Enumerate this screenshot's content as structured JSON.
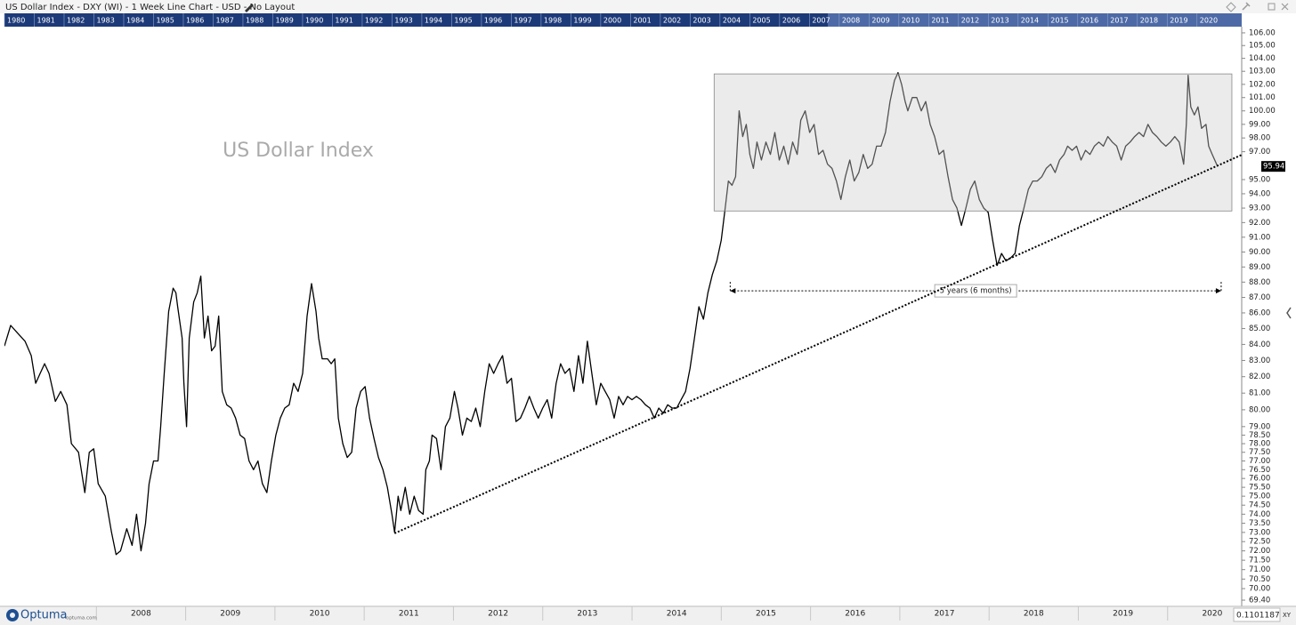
{
  "header": {
    "title": "US Dollar Index - DXY (WI) - 1 Week Line Chart - USD - No Layout"
  },
  "overview": {
    "years": [
      1980,
      1981,
      1982,
      1983,
      1984,
      1985,
      1986,
      1987,
      1988,
      1989,
      1990,
      1991,
      1992,
      1993,
      1994,
      1995,
      1996,
      1997,
      1998,
      1999,
      2000,
      2001,
      2002,
      2003,
      2004,
      2005,
      2006,
      2007,
      2008,
      2009,
      2010,
      2011,
      2012,
      2013,
      2014,
      2015,
      2016,
      2017,
      2018,
      2019,
      2020
    ]
  },
  "footer": {
    "logo": "Optuma",
    "site": "optuma.com",
    "scale_value": "0.1101187",
    "mode": "XY"
  },
  "chart_data": {
    "type": "line",
    "title": "US Dollar Index",
    "color": "#000000",
    "ylog": true,
    "grid": false,
    "xlim": [
      2006.97,
      2020.83
    ],
    "ylim": [
      69.08,
      106.49
    ],
    "xticks": [
      2008,
      2009,
      2010,
      2011,
      2012,
      2013,
      2014,
      2015,
      2016,
      2017,
      2018,
      2019,
      2020
    ],
    "yticks": [
      {
        "value": 106,
        "label": "106.00"
      },
      {
        "value": 105,
        "label": "105.00"
      },
      {
        "value": 104,
        "label": "104.00"
      },
      {
        "value": 103,
        "label": "103.00"
      },
      {
        "value": 102,
        "label": "102.00"
      },
      {
        "value": 101,
        "label": "101.00"
      },
      {
        "value": 100,
        "label": "100.00"
      },
      {
        "value": 99,
        "label": "99.00"
      },
      {
        "value": 98,
        "label": "98.00"
      },
      {
        "value": 97,
        "label": "97.00"
      },
      {
        "value": 95,
        "label": "95.00"
      },
      {
        "value": 94,
        "label": "94.00"
      },
      {
        "value": 93,
        "label": "93.00"
      },
      {
        "value": 92,
        "label": "92.00"
      },
      {
        "value": 91,
        "label": "91.00"
      },
      {
        "value": 90,
        "label": "90.00"
      },
      {
        "value": 89,
        "label": "89.00"
      },
      {
        "value": 88,
        "label": "88.00"
      },
      {
        "value": 87,
        "label": "87.00"
      },
      {
        "value": 86,
        "label": "86.00"
      },
      {
        "value": 85,
        "label": "85.00"
      },
      {
        "value": 84,
        "label": "84.00"
      },
      {
        "value": 83,
        "label": "83.00"
      },
      {
        "value": 82,
        "label": "82.00"
      },
      {
        "value": 81,
        "label": "81.00"
      },
      {
        "value": 80,
        "label": "80.00"
      },
      {
        "value": 79,
        "label": "79.00"
      },
      {
        "value": 78.5,
        "label": "78.50"
      },
      {
        "value": 78,
        "label": "78.00"
      },
      {
        "value": 77.5,
        "label": "77.50"
      },
      {
        "value": 77,
        "label": "77.00"
      },
      {
        "value": 76.5,
        "label": "76.50"
      },
      {
        "value": 76,
        "label": "76.00"
      },
      {
        "value": 75.5,
        "label": "75.50"
      },
      {
        "value": 75,
        "label": "75.00"
      },
      {
        "value": 74.5,
        "label": "74.50"
      },
      {
        "value": 74,
        "label": "74.00"
      },
      {
        "value": 73.5,
        "label": "73.50"
      },
      {
        "value": 73,
        "label": "73.00"
      },
      {
        "value": 72.5,
        "label": "72.50"
      },
      {
        "value": 72,
        "label": "72.00"
      },
      {
        "value": 71.5,
        "label": "71.50"
      },
      {
        "value": 71,
        "label": "71.00"
      },
      {
        "value": 70.5,
        "label": "70.50"
      },
      {
        "value": 70,
        "label": "70.00"
      },
      {
        "value": 69.4,
        "label": "69.40"
      }
    ],
    "x": [
      2006.97,
      2007.04,
      2007.12,
      2007.2,
      2007.27,
      2007.32,
      2007.37,
      2007.42,
      2007.47,
      2007.54,
      2007.6,
      2007.67,
      2007.72,
      2007.8,
      2007.87,
      2007.92,
      2007.97,
      2008.02,
      2008.1,
      2008.17,
      2008.22,
      2008.27,
      2008.34,
      2008.4,
      2008.45,
      2008.5,
      2008.55,
      2008.59,
      2008.64,
      2008.69,
      2008.72,
      2008.76,
      2008.81,
      2008.86,
      2008.89,
      2008.91,
      2008.96,
      2008.98,
      2009.01,
      2009.04,
      2009.09,
      2009.13,
      2009.17,
      2009.21,
      2009.25,
      2009.29,
      2009.33,
      2009.37,
      2009.41,
      2009.46,
      2009.51,
      2009.56,
      2009.61,
      2009.66,
      2009.71,
      2009.76,
      2009.81,
      2009.86,
      2009.91,
      2009.96,
      2010.01,
      2010.06,
      2010.11,
      2010.16,
      2010.21,
      2010.26,
      2010.31,
      2010.36,
      2010.41,
      2010.46,
      2010.49,
      2010.53,
      2010.59,
      2010.63,
      2010.67,
      2010.71,
      2010.76,
      2010.81,
      2010.86,
      2010.91,
      2010.96,
      2011.01,
      2011.06,
      2011.11,
      2011.16,
      2011.21,
      2011.26,
      2011.31,
      2011.34,
      2011.38,
      2011.41,
      2011.46,
      2011.51,
      2011.56,
      2011.61,
      2011.66,
      2011.69,
      2011.73,
      2011.76,
      2011.81,
      2011.86,
      2011.91,
      2011.96,
      2012.01,
      2012.05,
      2012.1,
      2012.15,
      2012.2,
      2012.25,
      2012.3,
      2012.35,
      2012.4,
      2012.45,
      2012.5,
      2012.55,
      2012.6,
      2012.65,
      2012.7,
      2012.75,
      2012.8,
      2012.85,
      2012.9,
      2012.95,
      2013.0,
      2013.05,
      2013.1,
      2013.15,
      2013.2,
      2013.25,
      2013.3,
      2013.35,
      2013.4,
      2013.45,
      2013.5,
      2013.55,
      2013.6,
      2013.65,
      2013.7,
      2013.75,
      2013.8,
      2013.85,
      2013.9,
      2013.95,
      2014.0,
      2014.05,
      2014.1,
      2014.15,
      2014.2,
      2014.25,
      2014.3,
      2014.35,
      2014.4,
      2014.45,
      2014.5,
      2014.55,
      2014.6,
      2014.65,
      2014.7,
      2014.75,
      2014.8,
      2014.85,
      2014.9,
      2014.95,
      2015.0,
      2015.05,
      2015.08,
      2015.12,
      2015.16,
      2015.2,
      2015.24,
      2015.28,
      2015.32,
      2015.36,
      2015.4,
      2015.45,
      2015.5,
      2015.55,
      2015.6,
      2015.65,
      2015.7,
      2015.75,
      2015.8,
      2015.85,
      2015.89,
      2015.94,
      2015.99,
      2016.04,
      2016.09,
      2016.14,
      2016.19,
      2016.24,
      2016.29,
      2016.34,
      2016.39,
      2016.44,
      2016.49,
      2016.54,
      2016.59,
      2016.64,
      2016.69,
      2016.74,
      2016.79,
      2016.84,
      2016.89,
      2016.94,
      2016.98,
      2017.02,
      2017.06,
      2017.09,
      2017.14,
      2017.19,
      2017.24,
      2017.29,
      2017.34,
      2017.39,
      2017.44,
      2017.49,
      2017.54,
      2017.59,
      2017.64,
      2017.69,
      2017.74,
      2017.79,
      2017.84,
      2017.89,
      2017.94,
      2017.99,
      2018.04,
      2018.09,
      2018.14,
      2018.19,
      2018.24,
      2018.29,
      2018.34,
      2018.39,
      2018.44,
      2018.49,
      2018.54,
      2018.59,
      2018.64,
      2018.69,
      2018.74,
      2018.79,
      2018.84,
      2018.88,
      2018.93,
      2018.98,
      2019.03,
      2019.08,
      2019.13,
      2019.18,
      2019.23,
      2019.28,
      2019.33,
      2019.38,
      2019.43,
      2019.48,
      2019.53,
      2019.58,
      2019.63,
      2019.68,
      2019.73,
      2019.78,
      2019.83,
      2019.88,
      2019.93,
      2019.98,
      2020.03,
      2020.08,
      2020.13,
      2020.18,
      2020.21,
      2020.23,
      2020.26,
      2020.3,
      2020.34,
      2020.38,
      2020.43,
      2020.46,
      2020.5,
      2020.56
    ],
    "values": [
      83.9,
      85.2,
      84.7,
      84.2,
      83.3,
      81.6,
      82.2,
      82.8,
      82.2,
      80.5,
      81.1,
      80.3,
      78.0,
      77.5,
      75.2,
      77.5,
      77.7,
      75.7,
      75.0,
      73.0,
      71.8,
      72.0,
      73.2,
      72.3,
      74.0,
      72.0,
      73.5,
      75.7,
      77.0,
      77.0,
      79.0,
      82.2,
      86.1,
      87.6,
      87.3,
      86.4,
      84.4,
      81.6,
      79.0,
      84.4,
      86.7,
      87.3,
      88.4,
      84.4,
      85.8,
      83.6,
      83.9,
      85.8,
      81.1,
      80.3,
      80.1,
      79.5,
      78.5,
      78.3,
      77.0,
      76.5,
      77.0,
      75.7,
      75.2,
      77.0,
      78.5,
      79.5,
      80.1,
      80.3,
      81.6,
      81.1,
      82.2,
      85.8,
      87.9,
      86.1,
      84.4,
      83.1,
      83.1,
      82.8,
      83.1,
      79.5,
      78.0,
      77.2,
      77.5,
      80.1,
      81.1,
      81.4,
      79.5,
      78.3,
      77.2,
      76.5,
      75.5,
      74.0,
      73.0,
      75.0,
      74.2,
      75.5,
      74.0,
      75.0,
      74.2,
      74.0,
      76.5,
      77.0,
      78.5,
      78.3,
      76.5,
      79.0,
      79.5,
      81.1,
      80.1,
      78.5,
      79.5,
      79.3,
      80.1,
      79.0,
      81.1,
      82.8,
      82.2,
      82.8,
      83.3,
      81.6,
      81.9,
      79.3,
      79.5,
      80.1,
      80.8,
      80.1,
      79.5,
      80.1,
      80.6,
      79.5,
      81.6,
      82.8,
      82.2,
      82.5,
      81.1,
      83.3,
      81.6,
      84.2,
      82.2,
      80.3,
      81.6,
      81.1,
      80.6,
      79.5,
      80.8,
      80.3,
      80.8,
      80.6,
      80.8,
      80.6,
      80.3,
      80.1,
      79.5,
      80.1,
      79.8,
      80.3,
      80.1,
      80.1,
      80.6,
      81.1,
      82.5,
      84.4,
      86.4,
      85.6,
      87.3,
      88.5,
      89.4,
      90.8,
      93.3,
      94.9,
      94.6,
      95.2,
      100.0,
      98.1,
      99.0,
      96.8,
      95.8,
      97.7,
      96.4,
      97.7,
      96.8,
      98.4,
      96.4,
      97.4,
      96.1,
      97.7,
      96.8,
      99.3,
      100.0,
      98.4,
      99.0,
      96.8,
      97.1,
      96.1,
      95.8,
      94.9,
      93.6,
      95.2,
      96.4,
      94.9,
      95.5,
      96.8,
      95.8,
      96.1,
      97.4,
      97.4,
      98.4,
      100.7,
      102.3,
      102.9,
      102.0,
      100.7,
      100.0,
      101.0,
      101.0,
      100.0,
      100.7,
      99.0,
      98.1,
      96.8,
      97.1,
      95.2,
      93.6,
      93.0,
      91.8,
      93.0,
      94.3,
      94.9,
      93.6,
      93.0,
      92.7,
      90.8,
      89.1,
      89.9,
      89.4,
      89.6,
      89.9,
      91.8,
      93.0,
      94.3,
      94.9,
      94.9,
      95.2,
      95.8,
      96.1,
      95.5,
      96.4,
      96.8,
      97.4,
      97.1,
      97.4,
      96.4,
      97.1,
      96.8,
      97.4,
      97.7,
      97.4,
      98.1,
      97.7,
      97.4,
      96.4,
      97.4,
      97.7,
      98.1,
      98.4,
      98.1,
      99.0,
      98.4,
      98.1,
      97.7,
      97.4,
      97.7,
      98.1,
      97.7,
      96.1,
      99.0,
      102.7,
      100.3,
      99.7,
      100.3,
      98.7,
      99.0,
      97.4,
      96.8,
      95.94
    ],
    "box": {
      "x": [
        2014.92,
        2020.72
      ],
      "y": [
        92.8,
        102.8
      ]
    },
    "trendline": {
      "x": [
        2011.34,
        2020.83
      ],
      "y": [
        72.95,
        96.77
      ]
    },
    "measure": {
      "label": "5 years (6 months)",
      "x": [
        2015.1,
        2020.6
      ],
      "y": 87.43
    }
  }
}
